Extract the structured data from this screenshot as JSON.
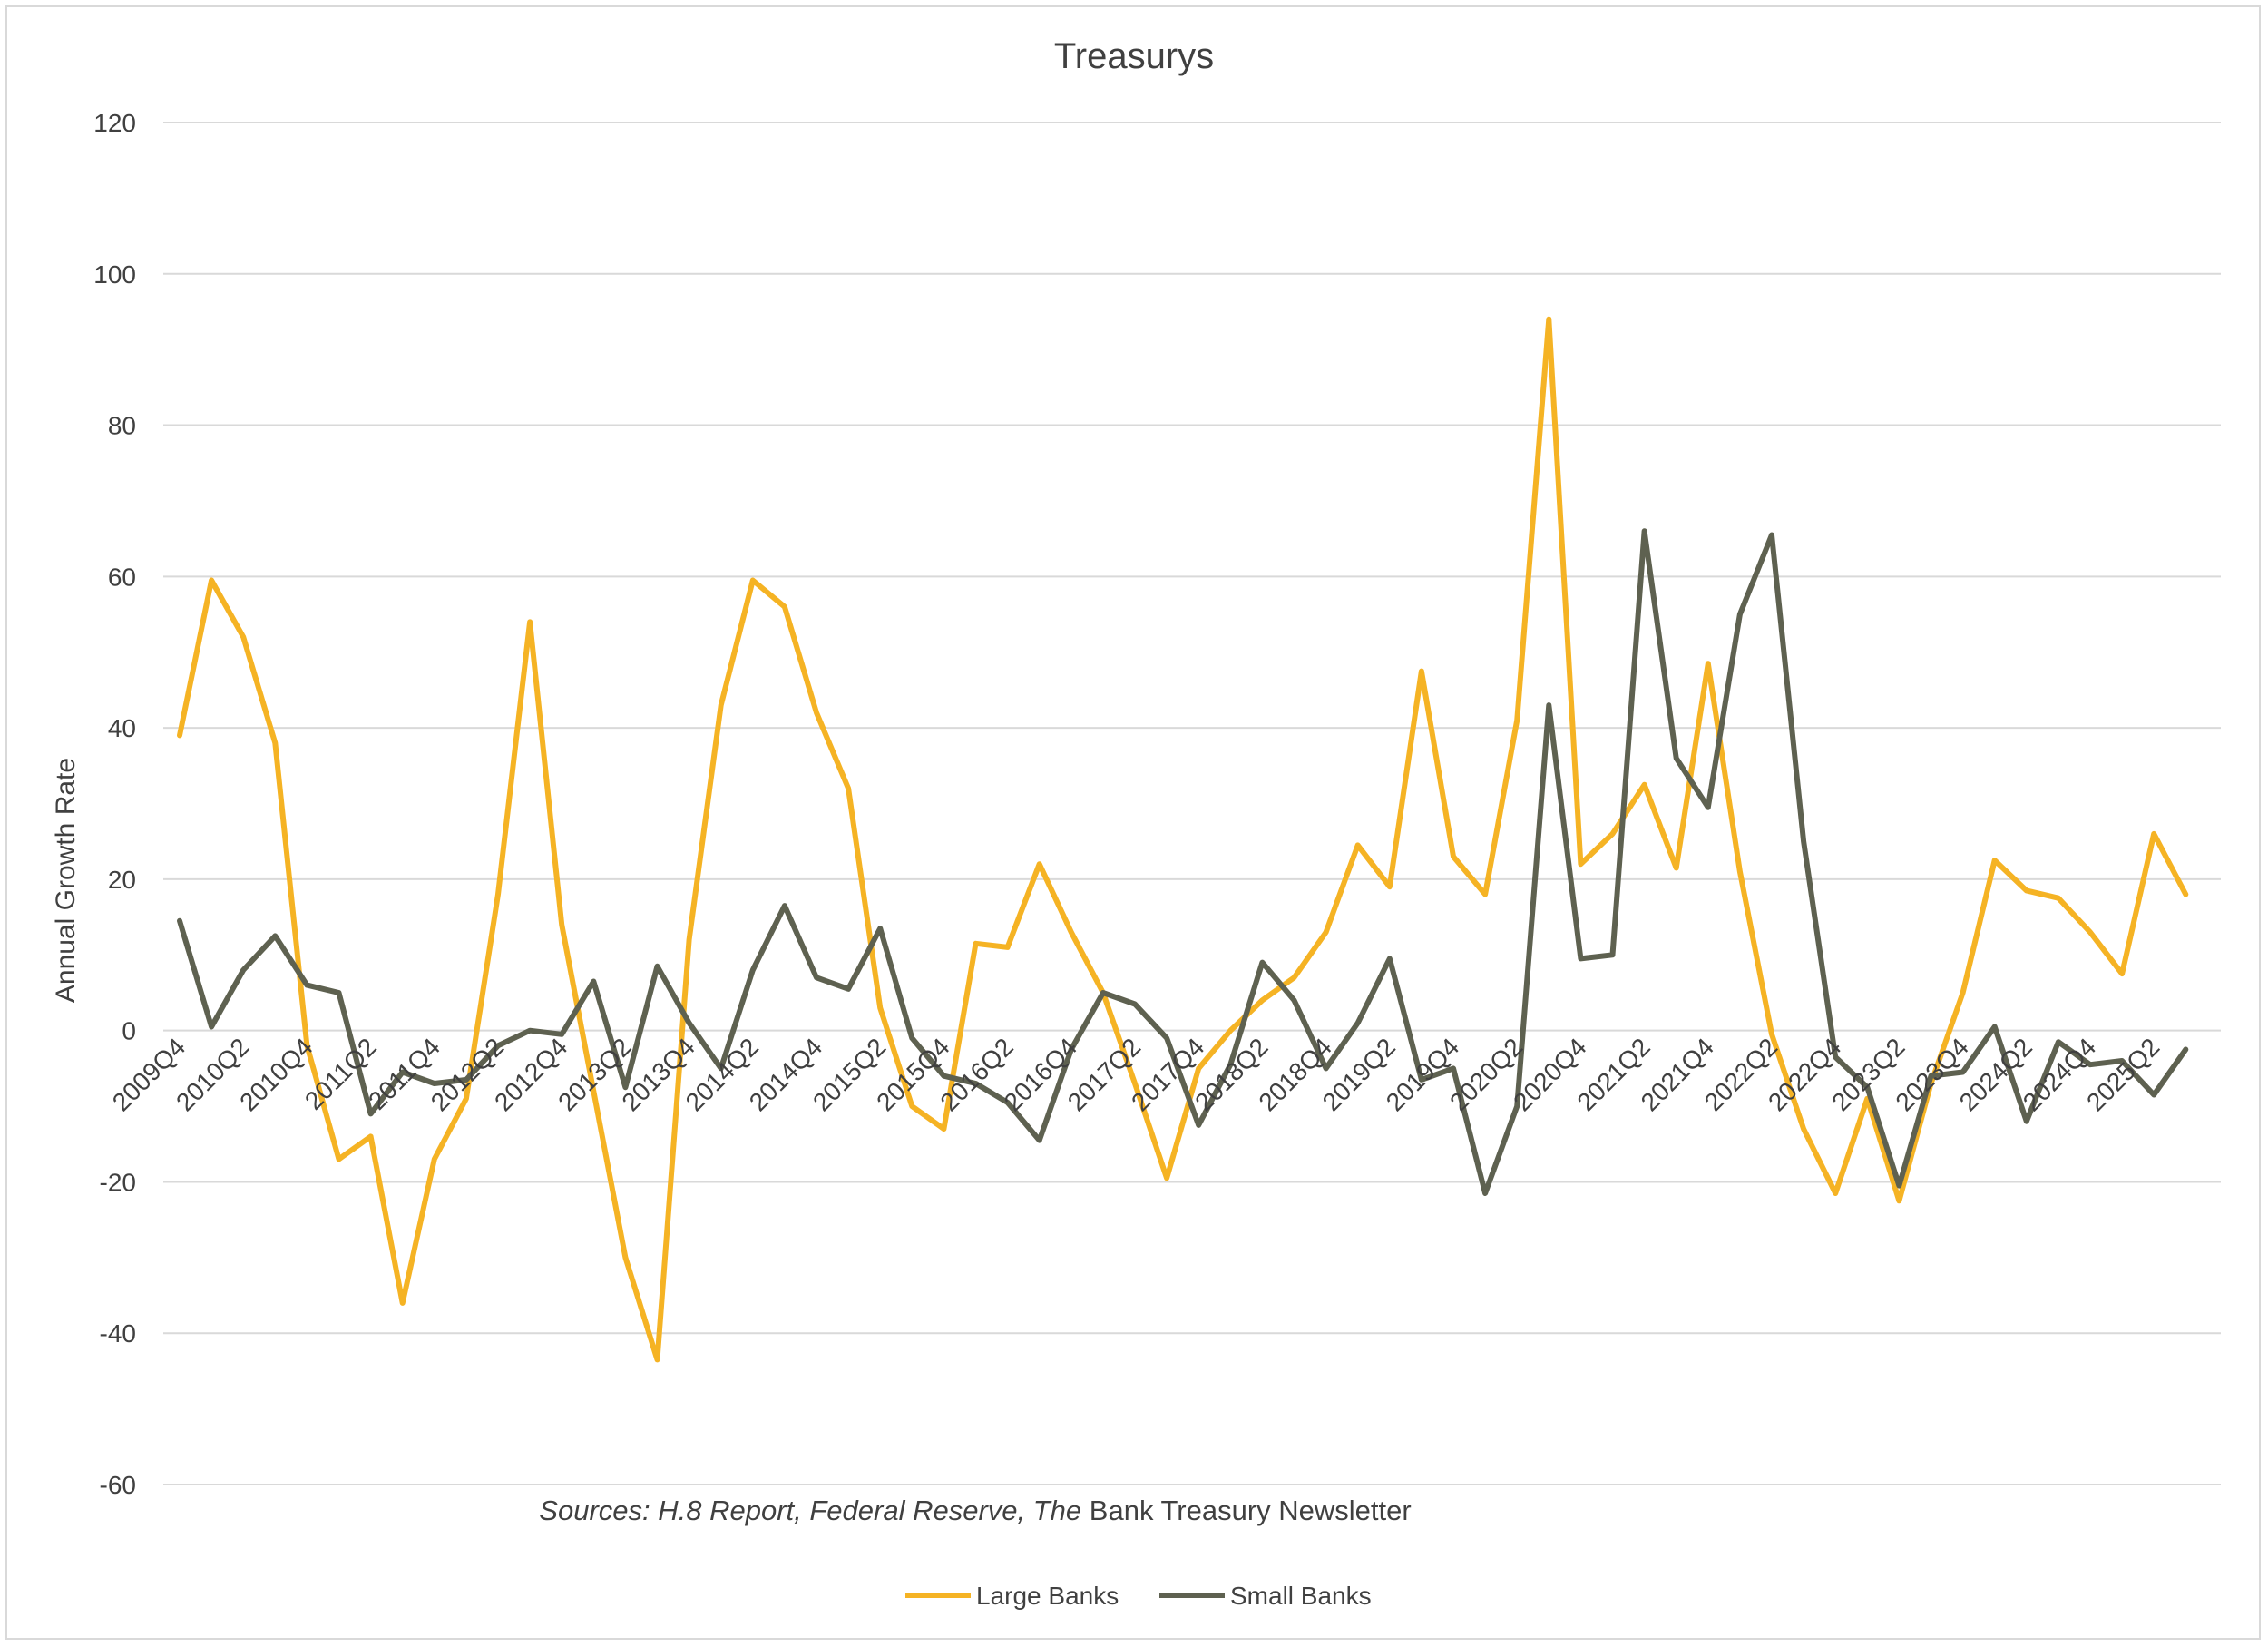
{
  "chart_data": {
    "type": "line",
    "title": "Treasurys",
    "ylabel": "Annual Growth Rate",
    "xlabel": "",
    "source_note": {
      "part1": "Sources: H.8 Report, Federal Reserve, The",
      "part2": " Bank Treasury Newsletter"
    },
    "ylim": [
      -60,
      120
    ],
    "yticks": [
      120,
      100,
      80,
      60,
      40,
      20,
      0,
      -20,
      -40,
      -60
    ],
    "grid": true,
    "legend_position": "bottom",
    "x": [
      "2009Q4",
      "2010Q1",
      "2010Q2",
      "2010Q3",
      "2010Q4",
      "2011Q1",
      "2011Q2",
      "2011Q3",
      "2011Q4",
      "2012Q1",
      "2012Q2",
      "2012Q3",
      "2012Q4",
      "2013Q1",
      "2013Q2",
      "2013Q3",
      "2013Q4",
      "2014Q1",
      "2014Q2",
      "2014Q3",
      "2014Q4",
      "2015Q1",
      "2015Q2",
      "2015Q3",
      "2015Q4",
      "2016Q1",
      "2016Q2",
      "2016Q3",
      "2016Q4",
      "2017Q1",
      "2017Q2",
      "2017Q3",
      "2017Q4",
      "2018Q1",
      "2018Q2",
      "2018Q3",
      "2018Q4",
      "2019Q1",
      "2019Q2",
      "2019Q3",
      "2019Q4",
      "2020Q1",
      "2020Q2",
      "2020Q3",
      "2020Q4",
      "2021Q1",
      "2021Q2",
      "2021Q3",
      "2021Q4",
      "2022Q1",
      "2022Q2",
      "2022Q3",
      "2022Q4",
      "2023Q1",
      "2023Q2",
      "2023Q3",
      "2023Q4",
      "2024Q1",
      "2024Q2",
      "2024Q3",
      "2024Q4",
      "2025Q1",
      "2025Q2",
      "2025Q3"
    ],
    "xtick_labels": [
      "2009Q4",
      "2010Q2",
      "2010Q4",
      "2011Q2",
      "2011Q4",
      "2012Q2",
      "2012Q4",
      "2013Q2",
      "2013Q4",
      "2014Q2",
      "2014Q4",
      "2015Q2",
      "2015Q4",
      "2016Q2",
      "2016Q4",
      "2017Q2",
      "2017Q4",
      "2018Q2",
      "2018Q4",
      "2019Q2",
      "2019Q4",
      "2020Q2",
      "2020Q4",
      "2021Q2",
      "2021Q4",
      "2022Q2",
      "2022Q4",
      "2023Q2",
      "2023Q4",
      "2024Q2",
      "2024Q4",
      "2025Q2"
    ],
    "series": [
      {
        "name": "Large Banks",
        "color": "#F5B324",
        "values": [
          39,
          59.5,
          52,
          38,
          -2,
          -17,
          -14,
          -36,
          -17,
          -9,
          18,
          54,
          14,
          -8,
          -30,
          -43.5,
          12,
          43,
          59.5,
          56,
          42,
          32,
          3,
          -10,
          -13,
          11.5,
          11,
          22,
          13,
          5,
          -7,
          -19.5,
          -5,
          0,
          4,
          7,
          13,
          24.5,
          19,
          47.5,
          23,
          18,
          41,
          94,
          22,
          26,
          32.5,
          21.5,
          48.5,
          21,
          -0.5,
          -13,
          -21.5,
          -9,
          -22.5,
          -7,
          5,
          22.5,
          18.5,
          17.5,
          13,
          7.5,
          26,
          18
        ]
      },
      {
        "name": "Small Banks",
        "color": "#5E6150",
        "values": [
          14.5,
          0.5,
          8,
          12.5,
          6,
          5,
          -11,
          -5.5,
          -7,
          -6.5,
          -2,
          0,
          -0.5,
          6.5,
          -7.5,
          8.5,
          1,
          -5,
          8,
          16.5,
          7,
          5.5,
          13.5,
          -1,
          -6,
          -7,
          -9.5,
          -14.5,
          -2.5,
          5,
          3.5,
          -1,
          -12.5,
          -4.5,
          9,
          4,
          -5,
          1,
          9.5,
          -6.5,
          -5,
          -21.5,
          -10,
          43,
          9.5,
          10,
          66,
          36,
          29.5,
          55,
          65.5,
          25,
          -3.5,
          -7.5,
          -20.5,
          -6,
          -5.5,
          0.5,
          -12,
          -1.5,
          -4.5,
          -4,
          -8.5,
          -2.5
        ]
      }
    ]
  }
}
